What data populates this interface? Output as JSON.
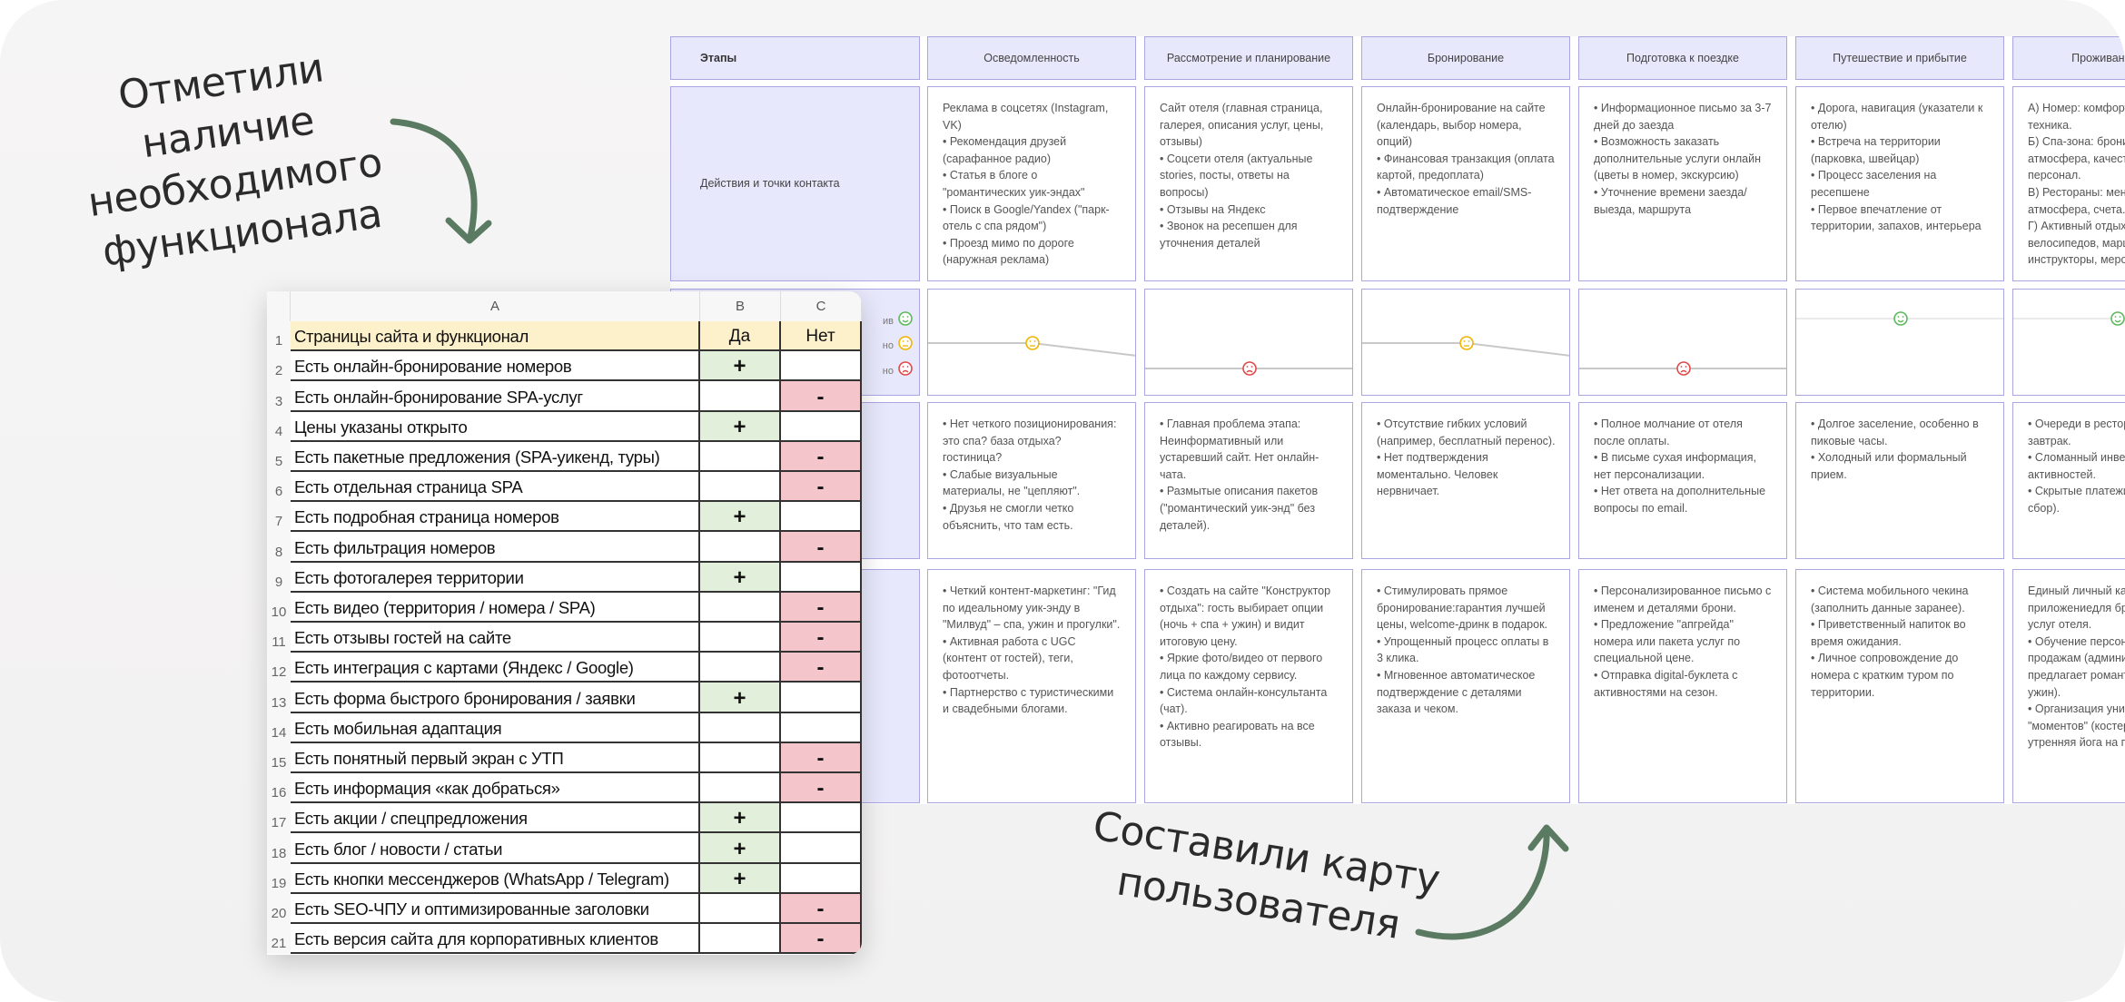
{
  "annotations": {
    "left": [
      "Отметили наличие",
      "необходимого",
      "функционала"
    ],
    "right": [
      "Составили карту",
      "пользователя"
    ],
    "arrow_color": "#5a7a62"
  },
  "spreadsheet": {
    "column_headers": [
      "A",
      "B",
      "C"
    ],
    "header": {
      "row": "1",
      "a": "Страницы сайта и функционал",
      "b": "Да",
      "c": "Нет"
    },
    "colors": {
      "header": "#fdf1cc",
      "yes": "#e2efda",
      "no": "#f4c5cb"
    },
    "rows": [
      {
        "n": "2",
        "text": "Есть онлайн-бронирование номеров",
        "yes": "+",
        "no": ""
      },
      {
        "n": "3",
        "text": "Есть онлайн-бронирование SPA-услуг",
        "yes": "",
        "no": "-"
      },
      {
        "n": "4",
        "text": "Цены указаны открыто",
        "yes": "+",
        "no": ""
      },
      {
        "n": "5",
        "text": "Есть пакетные предложения (SPA-уикенд, туры)",
        "yes": "",
        "no": "-"
      },
      {
        "n": "6",
        "text": "Есть отдельная страница SPA",
        "yes": "",
        "no": "-"
      },
      {
        "n": "7",
        "text": "Есть подробная страница номеров",
        "yes": "+",
        "no": ""
      },
      {
        "n": "8",
        "text": "Есть фильтрация номеров",
        "yes": "",
        "no": "-"
      },
      {
        "n": "9",
        "text": "Есть фотогалерея территории",
        "yes": "+",
        "no": ""
      },
      {
        "n": "10",
        "text": "Есть видео (территория / номера / SPA)",
        "yes": "",
        "no": "-"
      },
      {
        "n": "11",
        "text": "Есть отзывы гостей на сайте",
        "yes": "",
        "no": "-"
      },
      {
        "n": "12",
        "text": "Есть интеграция с картами (Яндекс / Google)",
        "yes": "",
        "no": "-"
      },
      {
        "n": "13",
        "text": "Есть форма быстрого бронирования / заявки",
        "yes": "+",
        "no": ""
      },
      {
        "n": "14",
        "text": "Есть мобильная адаптация",
        "yes": "",
        "no": ""
      },
      {
        "n": "15",
        "text": "Есть понятный первый экран с УТП",
        "yes": "",
        "no": "-"
      },
      {
        "n": "16",
        "text": "Есть информация «как добраться»",
        "yes": "",
        "no": "-"
      },
      {
        "n": "17",
        "text": "Есть акции / спецпредложения",
        "yes": "+",
        "no": ""
      },
      {
        "n": "18",
        "text": "Есть блог / новости / статьи",
        "yes": "+",
        "no": ""
      },
      {
        "n": "19",
        "text": "Есть кнопки мессенджеров (WhatsApp / Telegram)",
        "yes": "+",
        "no": ""
      },
      {
        "n": "20",
        "text": "Есть SEO-ЧПУ и оптимизированные заголовки",
        "yes": "",
        "no": "-"
      },
      {
        "n": "21",
        "text": "Есть версия сайта для корпоративных клиентов",
        "yes": "",
        "no": "-"
      }
    ]
  },
  "journey_map": {
    "row_labels": {
      "stages": "Этапы",
      "actions": "Действия и точки контакта"
    },
    "emotion_scale_fragments": [
      "ив",
      "но",
      "но"
    ],
    "emotion_colors": {
      "positive": "#5cb85c",
      "neutral": "#f0b400",
      "negative": "#e04848"
    },
    "stages": [
      {
        "title": "Осведомленность",
        "emotion": "neutral",
        "actions": [
          "Реклама в соцсетях (Instagram, VK)",
          "• Рекомендация друзей (сарафанное радио)",
          "• Статья в блоге о \"романтических уик-эндах\"",
          "• Поиск в Google/Yandex (\"парк-отель с спа рядом\")",
          "• Проезд мимо по дороге (наружная реклама)"
        ],
        "problems": [
          "• Нет четкого позиционирования: это спа? база отдыха? гостиница?",
          "• Слабые визуальные материалы, не \"цепляют\".",
          "• Друзья не смогли четко объяснить, что там есть."
        ],
        "solutions": [
          "• Четкий контент-маркетинг: \"Гид по идеальному уик-энду в \"Милвуд\" – спа, ужин и прогулки\".",
          "• Активная работа с UGC (контент от гостей), теги, фотоотчеты.",
          "• Партнерство с туристическими и свадебными блогами."
        ]
      },
      {
        "title": "Рассмотрение и планирование",
        "emotion": "negative",
        "actions": [
          "Сайт отеля (главная страница, галерея, описания услуг, цены, отзывы)",
          "• Соцсети отеля (актуальные stories, посты, ответы на вопросы)",
          "• Отзывы на Яндекс",
          "• Звонок на ресепшен для уточнения деталей"
        ],
        "problems": [
          "• Главная проблема этапа: Неинформативный или устаревший сайт. Нет онлайн-чата.",
          "• Размытые описания пакетов (\"романтический уик-энд\" без деталей)."
        ],
        "solutions": [
          "• Создать на сайте \"Конструктор отдыха\": гость выбирает опции (ночь + спа + ужин) и видит итоговую цену.",
          "• Яркие фото/видео от первого лица по каждому сервису.",
          "• Система онлайн-консультанта (чат).",
          "• Активно реагировать на все отзывы."
        ]
      },
      {
        "title": "Бронирование",
        "emotion": "neutral",
        "actions": [
          "Онлайн-бронирование на сайте (календарь, выбор номера, опций)",
          "• Финансовая транзакция (оплата картой, предоплата)",
          "• Автоматическое email/SMS-подтверждение"
        ],
        "problems": [
          "• Отсутствие гибких условий (например, бесплатный перенос).",
          "• Нет подтверждения моментально. Человек нервничает."
        ],
        "solutions": [
          "• Стимулировать прямое бронирование:гарантия лучшей цены, welcome-дринк в подарок.",
          "• Упрощенный процесс оплаты в 3 клика.",
          "• Мгновенное автоматическое подтверждение с деталями заказа и чеком."
        ]
      },
      {
        "title": "Подготовка к поездке",
        "emotion": "negative",
        "actions": [
          "• Информационное письмо за 3-7 дней до заезда",
          "• Возможность заказать дополнительные услуги онлайн (цветы в номер, экскурсию)",
          "• Уточнение времени заезда/выезда, маршрута"
        ],
        "problems": [
          "• Полное молчание от отеля после оплаты.",
          "• В письме сухая информация, нет персонализации.",
          "• Нет ответа на дополнительные вопросы по email."
        ],
        "solutions": [
          "• Персонализированное письмо с именем и деталями брони.",
          "• Предложение \"апгрейда\" номера или пакета услуг по специальной цене.",
          "• Отправка digital-буклета с активностями на сезон."
        ]
      },
      {
        "title": "Путешествие и прибытие",
        "emotion": "positive",
        "actions": [
          "• Дорога, навигация (указатели к отелю)",
          "• Встреча на территории (парковка, швейцар)",
          "• Процесс заселения на ресепшене",
          "• Первое впечатление от территории, запахов, интерьера"
        ],
        "problems": [
          "• Долгое заселение, особенно в пиковые часы.",
          "• Холодный или формальный прием."
        ],
        "solutions": [
          "• Система мобильного чекина (заполнить данные заранее).",
          "• Приветственный напиток во время ожидания.",
          "• Личное сопровождение до номера с кратким туром по территории."
        ]
      },
      {
        "title": "Проживание и вп",
        "emotion": "positive",
        "clipped": true,
        "actions": [
          "А) Номер: комфорт,",
          "техника.",
          "Б) Спа-зона: бронир",
          "атмосфера, качеств",
          "персонал.",
          "В) Рестораны: меню",
          "атмосфера, счета.",
          "Г) Активный отдых: ",
          "велосипедов, марш",
          "инструкторы, мероп"
        ],
        "problems": [
          "• Очереди в рестора",
          "завтрак.",
          "• Сломанный инвент",
          "активностей.",
          "• Скрытые платежи (",
          "сбор)."
        ],
        "solutions": [
          " Единый личный каб",
          "приложениедля бро",
          "услуг отеля.",
          "• Обучение персона",
          "продажам (админис",
          "предлагает романти",
          "ужин).",
          "• Организация уника",
          "\"моментов\" (костер",
          "утренняя йога на пр"
        ]
      }
    ]
  }
}
